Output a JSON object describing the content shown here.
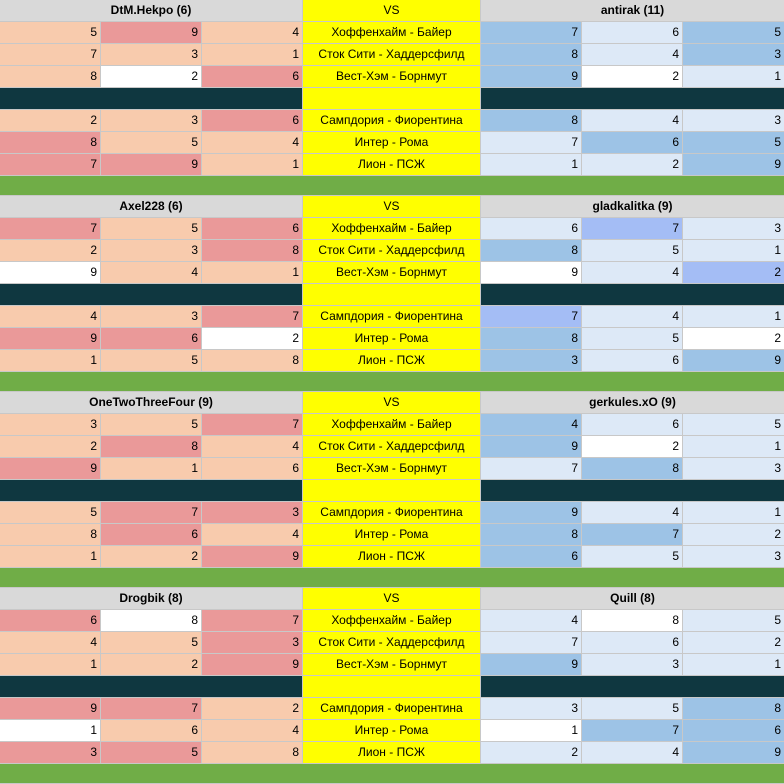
{
  "vs_label": "VS",
  "matches": [
    "Хоффенхайм - Байер",
    "Сток Сити - Хаддерсфилд",
    "Вест-Хэм - Борнмут",
    "Сампдория - Фиорентина",
    "Интер - Рома",
    "Лион - ПСЖ"
  ],
  "colors": {
    "peach": "#f8cbad",
    "red": "#ea9999",
    "white": "#ffffff",
    "light_blue": "#dde9f7",
    "mid_blue": "#9dc3e6",
    "periwinkle": "#a4bdf5",
    "match_yellow": "#ffff00",
    "separator_dark": "#0f3740",
    "gap_green": "#70ad47",
    "header_gray": "#d9d9d9"
  },
  "blocks": [
    {
      "left_player": "DtM.Hekpo (6)",
      "right_player": "antirak (11)",
      "rows": [
        {
          "l": [
            "5",
            "9",
            "4"
          ],
          "lc": [
            "peach",
            "red",
            "peach"
          ],
          "r": [
            "7",
            "6",
            "5"
          ],
          "rc": [
            "mb",
            "lb",
            "mb"
          ]
        },
        {
          "l": [
            "7",
            "3",
            "1"
          ],
          "lc": [
            "peach",
            "peach",
            "peach"
          ],
          "r": [
            "8",
            "4",
            "3"
          ],
          "rc": [
            "mb",
            "lb",
            "mb"
          ]
        },
        {
          "l": [
            "8",
            "2",
            "6"
          ],
          "lc": [
            "peach",
            "white",
            "red"
          ],
          "r": [
            "9",
            "2",
            "1"
          ],
          "rc": [
            "mb",
            "white",
            "lb"
          ]
        },
        {
          "l": [
            "2",
            "3",
            "6"
          ],
          "lc": [
            "peach",
            "peach",
            "red"
          ],
          "r": [
            "8",
            "4",
            "3"
          ],
          "rc": [
            "mb",
            "lb",
            "lb"
          ]
        },
        {
          "l": [
            "8",
            "5",
            "4"
          ],
          "lc": [
            "red",
            "peach",
            "peach"
          ],
          "r": [
            "7",
            "6",
            "5"
          ],
          "rc": [
            "lb",
            "mb",
            "mb"
          ]
        },
        {
          "l": [
            "7",
            "9",
            "1"
          ],
          "lc": [
            "red",
            "red",
            "peach"
          ],
          "r": [
            "1",
            "2",
            "9"
          ],
          "rc": [
            "lb",
            "lb",
            "mb"
          ]
        }
      ]
    },
    {
      "left_player": "Axel228 (6)",
      "right_player": "gladkalitka (9)",
      "rows": [
        {
          "l": [
            "7",
            "5",
            "6"
          ],
          "lc": [
            "red",
            "peach",
            "red"
          ],
          "r": [
            "6",
            "7",
            "3"
          ],
          "rc": [
            "lb",
            "pb",
            "lb"
          ]
        },
        {
          "l": [
            "2",
            "3",
            "8"
          ],
          "lc": [
            "peach",
            "peach",
            "red"
          ],
          "r": [
            "8",
            "5",
            "1"
          ],
          "rc": [
            "mb",
            "lb",
            "lb"
          ]
        },
        {
          "l": [
            "9",
            "4",
            "1"
          ],
          "lc": [
            "white",
            "peach",
            "peach"
          ],
          "r": [
            "9",
            "4",
            "2"
          ],
          "rc": [
            "white",
            "lb",
            "pb"
          ]
        },
        {
          "l": [
            "4",
            "3",
            "7"
          ],
          "lc": [
            "peach",
            "peach",
            "red"
          ],
          "r": [
            "7",
            "4",
            "1"
          ],
          "rc": [
            "pb",
            "lb",
            "lb"
          ]
        },
        {
          "l": [
            "9",
            "6",
            "2"
          ],
          "lc": [
            "red",
            "red",
            "white"
          ],
          "r": [
            "8",
            "5",
            "2"
          ],
          "rc": [
            "mb",
            "lb",
            "white"
          ]
        },
        {
          "l": [
            "1",
            "5",
            "8"
          ],
          "lc": [
            "peach",
            "peach",
            "peach"
          ],
          "r": [
            "3",
            "6",
            "9"
          ],
          "rc": [
            "mb",
            "lb",
            "mb"
          ]
        }
      ]
    },
    {
      "left_player": "OneTwoThreeFour (9)",
      "right_player": "gerkules.xO (9)",
      "rows": [
        {
          "l": [
            "3",
            "5",
            "7"
          ],
          "lc": [
            "peach",
            "peach",
            "red"
          ],
          "r": [
            "4",
            "6",
            "5"
          ],
          "rc": [
            "mb",
            "lb",
            "lb"
          ]
        },
        {
          "l": [
            "2",
            "8",
            "4"
          ],
          "lc": [
            "peach",
            "red",
            "peach"
          ],
          "r": [
            "9",
            "2",
            "1"
          ],
          "rc": [
            "mb",
            "white",
            "lb"
          ]
        },
        {
          "l": [
            "9",
            "1",
            "6"
          ],
          "lc": [
            "red",
            "peach",
            "peach"
          ],
          "r": [
            "7",
            "8",
            "3"
          ],
          "rc": [
            "lb",
            "mb",
            "lb"
          ]
        },
        {
          "l": [
            "5",
            "7",
            "3"
          ],
          "lc": [
            "peach",
            "red",
            "red"
          ],
          "r": [
            "9",
            "4",
            "1"
          ],
          "rc": [
            "mb",
            "lb",
            "lb"
          ]
        },
        {
          "l": [
            "8",
            "6",
            "4"
          ],
          "lc": [
            "peach",
            "red",
            "peach"
          ],
          "r": [
            "8",
            "7",
            "2"
          ],
          "rc": [
            "mb",
            "mb",
            "lb"
          ]
        },
        {
          "l": [
            "1",
            "2",
            "9"
          ],
          "lc": [
            "peach",
            "peach",
            "red"
          ],
          "r": [
            "6",
            "5",
            "3"
          ],
          "rc": [
            "mb",
            "lb",
            "lb"
          ]
        }
      ]
    },
    {
      "left_player": "Drogbik (8)",
      "right_player": "Quill (8)",
      "rows": [
        {
          "l": [
            "6",
            "8",
            "7"
          ],
          "lc": [
            "red",
            "white",
            "red"
          ],
          "r": [
            "4",
            "8",
            "5"
          ],
          "rc": [
            "lb",
            "white",
            "lb"
          ]
        },
        {
          "l": [
            "4",
            "5",
            "3"
          ],
          "lc": [
            "peach",
            "peach",
            "red"
          ],
          "r": [
            "7",
            "6",
            "2"
          ],
          "rc": [
            "lb",
            "lb",
            "lb"
          ]
        },
        {
          "l": [
            "1",
            "2",
            "9"
          ],
          "lc": [
            "peach",
            "peach",
            "red"
          ],
          "r": [
            "9",
            "3",
            "1"
          ],
          "rc": [
            "mb",
            "lb",
            "lb"
          ]
        },
        {
          "l": [
            "9",
            "7",
            "2"
          ],
          "lc": [
            "red",
            "red",
            "peach"
          ],
          "r": [
            "3",
            "5",
            "8"
          ],
          "rc": [
            "lb",
            "lb",
            "mb"
          ]
        },
        {
          "l": [
            "1",
            "6",
            "4"
          ],
          "lc": [
            "white",
            "peach",
            "peach"
          ],
          "r": [
            "1",
            "7",
            "6"
          ],
          "rc": [
            "white",
            "mb",
            "mb"
          ]
        },
        {
          "l": [
            "3",
            "5",
            "8"
          ],
          "lc": [
            "red",
            "red",
            "peach"
          ],
          "r": [
            "2",
            "4",
            "9"
          ],
          "rc": [
            "lb",
            "lb",
            "mb"
          ]
        }
      ]
    }
  ]
}
